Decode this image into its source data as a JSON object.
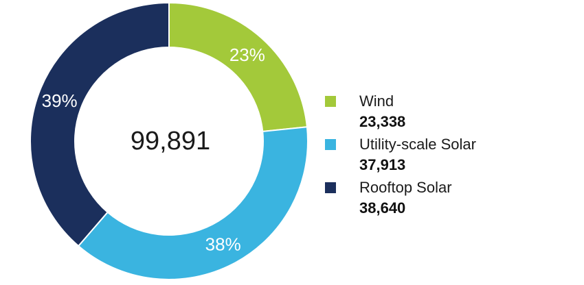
{
  "chart_data": {
    "type": "pie",
    "style": "donut",
    "total_label": "99,891",
    "slices": [
      {
        "name": "Wind",
        "value": 23338,
        "value_label": "23,338",
        "percent_label": "23%",
        "color": "#a3c93a"
      },
      {
        "name": "Utility-scale Solar",
        "value": 37913,
        "value_label": "37,913",
        "percent_label": "38%",
        "color": "#3ab4e0"
      },
      {
        "name": "Rooftop Solar",
        "value": 38640,
        "value_label": "38,640",
        "percent_label": "39%",
        "color": "#1b2f5c"
      }
    ],
    "legend_position": "right"
  }
}
